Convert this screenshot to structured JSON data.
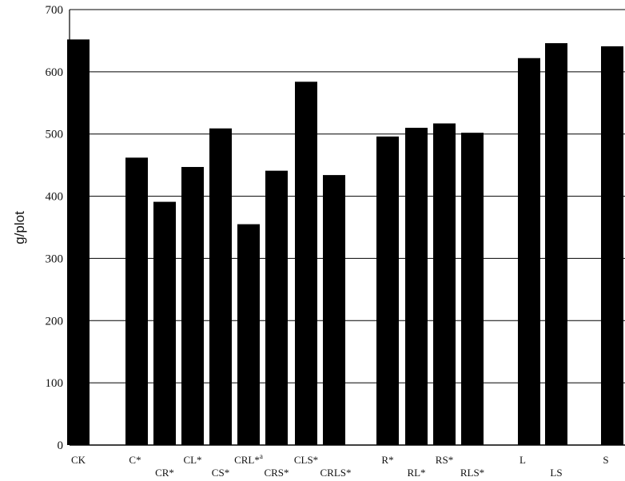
{
  "chart_data": {
    "type": "bar",
    "title": "",
    "xlabel": "",
    "ylabel": "g/plot",
    "ylim": [
      0,
      700
    ],
    "yticks": [
      "0",
      "100",
      "200",
      "300",
      "400",
      "500",
      "600",
      "700"
    ],
    "grid": "horizontal",
    "categories": [
      "CK",
      "C*",
      "CR*",
      "CL*",
      "CS*",
      "CRL*",
      "CRS*",
      "CLS*",
      "CRLS*",
      "R*",
      "RL*",
      "RS*",
      "RLS*",
      "L",
      "LS",
      "S"
    ],
    "values": [
      652,
      462,
      391,
      447,
      509,
      355,
      441,
      584,
      434,
      496,
      510,
      517,
      502,
      622,
      646,
      641
    ],
    "superscripts": {
      "CRL*": "a"
    },
    "bar_color": "#000000"
  }
}
